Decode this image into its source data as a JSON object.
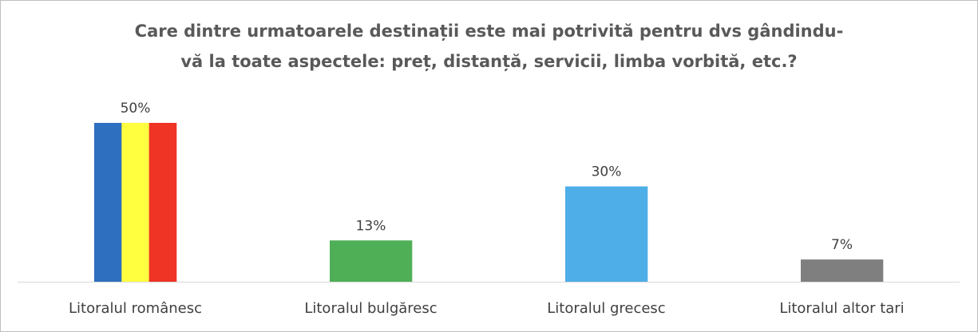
{
  "chart_data": {
    "type": "bar",
    "title_lines": [
      "Care dintre urmatoarele destinații este mai potrivită pentru dvs gândindu-",
      "vă la toate aspectele: preț, distanță, servicii, limba vorbită, etc.?"
    ],
    "categories": [
      "Litoralul românesc",
      "Litoralul bulgăresc",
      "Litoralul grecesc",
      "Litoralul altor tari"
    ],
    "values": [
      50,
      13,
      30,
      7
    ],
    "data_labels": [
      "50%",
      "13%",
      "30%",
      "7%"
    ],
    "value_unit": "%",
    "ylim": [
      0,
      52
    ],
    "grid": false,
    "legend": "none",
    "bar_colors": [
      [
        "#2e6fc0",
        "#ffff40",
        "#ef3324"
      ],
      [
        "#4faf57"
      ],
      [
        "#4daee8"
      ],
      [
        "#7f7f7f"
      ]
    ],
    "axis_color": "#d9d9d9"
  }
}
